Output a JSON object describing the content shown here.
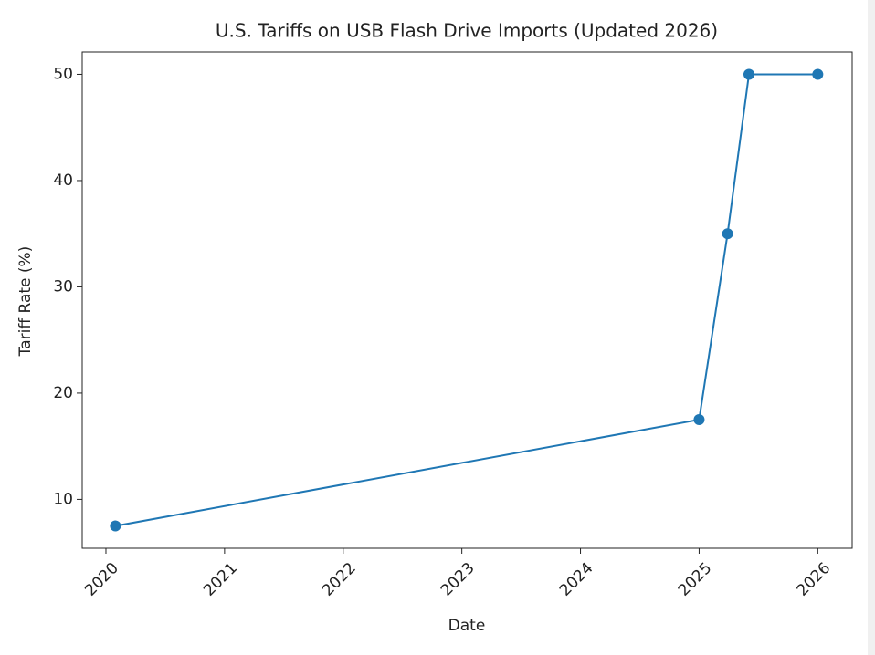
{
  "chart_data": {
    "type": "line",
    "title": "U.S. Tariffs on USB Flash Drive Imports (Updated 2026)",
    "x_label": "Date",
    "y_label": "Tariff Rate (%)",
    "x": [
      2020.08,
      2025.0,
      2025.24,
      2025.42,
      2026.0
    ],
    "series": [
      {
        "name": "Tariff Rate",
        "color": "#1f77b4",
        "values": [
          7.5,
          17.5,
          35,
          50,
          50
        ]
      }
    ],
    "xlim": [
      2019.8,
      2026.29
    ],
    "xticks": [
      2020,
      2021,
      2022,
      2023,
      2024,
      2025,
      2026
    ],
    "ylim": [
      5.4,
      52.1
    ],
    "yticks": [
      10,
      20,
      30,
      40,
      50
    ],
    "markers": true,
    "grid": false
  }
}
